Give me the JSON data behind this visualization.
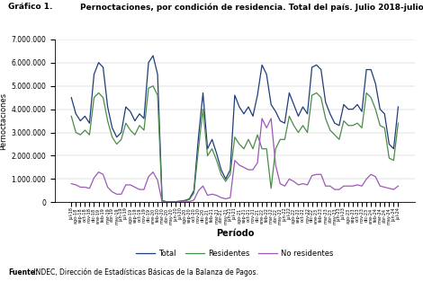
{
  "title_left": "Gráfico 1.",
  "title_right": "Pernoctaciones, por condición de residencia. Total del país. Julio 2018-julio 2024",
  "ylabel": "Pernoctaciones",
  "xlabel": "Período",
  "source_bold": "Fuente:",
  "source_rest": " INDEC, Dirección de Estadísticas Básicas de la Balanza de Pagos.",
  "legend": [
    "Total",
    "Residentes",
    "No residentes"
  ],
  "colors": {
    "Total": "#1f3d7a",
    "Residentes": "#4a8c4a",
    "No residentes": "#9b59b6"
  },
  "ylim": [
    0,
    7000000
  ],
  "yticks": [
    0,
    1000000,
    2000000,
    3000000,
    4000000,
    5000000,
    6000000,
    7000000
  ],
  "periods": [
    "jul-18",
    "ago-18",
    "sep-18",
    "oct-18",
    "nov-18",
    "dic-18",
    "ene-19",
    "feb-19",
    "mar-19",
    "abr-19",
    "may-19",
    "jun-19",
    "jul-19",
    "ago-19",
    "sep-19",
    "oct-19",
    "nov-19",
    "dic-19",
    "ene-20",
    "feb-20",
    "mar-20",
    "abr-20",
    "may-20",
    "jun-20",
    "jul-20",
    "ago-20",
    "sep-20",
    "oct-20",
    "nov-20",
    "dic-20",
    "ene-21",
    "feb-21",
    "mar-21",
    "abr-21",
    "may-21",
    "jun-21",
    "jul-21",
    "ago-21",
    "sep-21",
    "oct-21",
    "nov-21",
    "dic-21",
    "ene-22",
    "feb-22",
    "mar-22",
    "abr-22",
    "may-22",
    "jun-22",
    "jul-22",
    "ago-22",
    "sep-22",
    "oct-22",
    "nov-22",
    "dic-22",
    "ene-23",
    "feb-23",
    "mar-23",
    "abr-23",
    "may-23",
    "jun-23",
    "jul-23",
    "ago-23",
    "sep-23",
    "oct-23",
    "nov-23",
    "dic-23",
    "ene-24",
    "feb-24",
    "mar-24",
    "abr-24",
    "may-24",
    "jun-24",
    "jul-24"
  ],
  "total": [
    4500000,
    3800000,
    3500000,
    3700000,
    3400000,
    5500000,
    6000000,
    5800000,
    4100000,
    3200000,
    2800000,
    3000000,
    4100000,
    3900000,
    3500000,
    3800000,
    3600000,
    6000000,
    6300000,
    5500000,
    80000,
    20000,
    20000,
    30000,
    50000,
    80000,
    150000,
    500000,
    2800000,
    4700000,
    2300000,
    2700000,
    2100000,
    1400000,
    1000000,
    1400000,
    4600000,
    4100000,
    3800000,
    4100000,
    3700000,
    4600000,
    5900000,
    5500000,
    4200000,
    3900000,
    3500000,
    3400000,
    4700000,
    4200000,
    3700000,
    4100000,
    3800000,
    5800000,
    5900000,
    5700000,
    4300000,
    3800000,
    3400000,
    3300000,
    4200000,
    4000000,
    4000000,
    4200000,
    3900000,
    5700000,
    5700000,
    5100000,
    4000000,
    3800000,
    2500000,
    2300000,
    4100000
  ],
  "residentes": [
    3700000,
    3000000,
    2900000,
    3100000,
    2900000,
    4500000,
    4700000,
    4500000,
    3500000,
    2800000,
    2500000,
    2700000,
    3400000,
    3100000,
    2900000,
    3300000,
    3100000,
    4900000,
    5000000,
    4600000,
    70000,
    15000,
    15000,
    20000,
    40000,
    60000,
    120000,
    400000,
    2300000,
    4000000,
    2000000,
    2300000,
    1800000,
    1200000,
    900000,
    1200000,
    2800000,
    2500000,
    2300000,
    2700000,
    2300000,
    2900000,
    2300000,
    2300000,
    600000,
    2300000,
    2700000,
    2700000,
    3700000,
    3300000,
    3000000,
    3300000,
    3000000,
    4600000,
    4700000,
    4500000,
    3600000,
    3100000,
    2900000,
    2700000,
    3500000,
    3300000,
    3300000,
    3400000,
    3200000,
    4700000,
    4500000,
    4000000,
    3300000,
    3200000,
    1900000,
    1800000,
    3400000
  ],
  "no_residentes": [
    800000,
    750000,
    650000,
    650000,
    600000,
    1050000,
    1300000,
    1200000,
    650000,
    450000,
    350000,
    350000,
    750000,
    750000,
    650000,
    550000,
    550000,
    1100000,
    1300000,
    950000,
    10000,
    5000,
    5000,
    10000,
    10000,
    20000,
    30000,
    100000,
    500000,
    700000,
    300000,
    350000,
    300000,
    200000,
    150000,
    200000,
    1800000,
    1600000,
    1500000,
    1400000,
    1400000,
    1700000,
    3600000,
    3200000,
    3600000,
    1600000,
    800000,
    700000,
    1000000,
    900000,
    750000,
    800000,
    750000,
    1150000,
    1200000,
    1200000,
    700000,
    700000,
    550000,
    550000,
    700000,
    700000,
    700000,
    750000,
    700000,
    1000000,
    1200000,
    1100000,
    700000,
    650000,
    600000,
    550000,
    700000
  ]
}
